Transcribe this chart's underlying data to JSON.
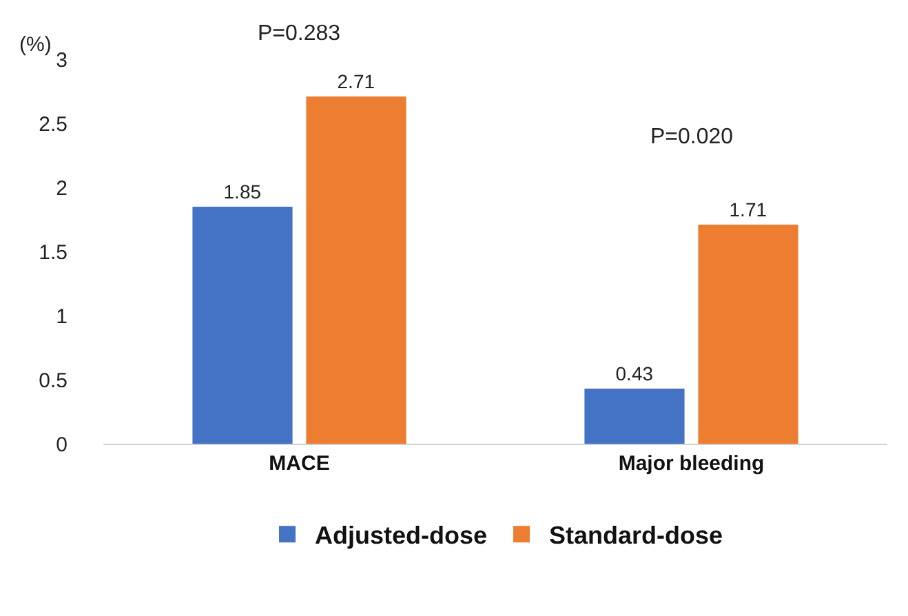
{
  "chart_data": {
    "type": "bar",
    "ylabel": "(%)",
    "categories": [
      "MACE",
      "Major bleeding"
    ],
    "series": [
      {
        "name": "Adjusted-dose",
        "color": "#4472c4",
        "values": [
          1.85,
          0.43
        ]
      },
      {
        "name": "Standard-dose",
        "color": "#ed7d31",
        "values": [
          2.71,
          1.71
        ]
      }
    ],
    "ylim": [
      0,
      3
    ],
    "yticks": [
      0,
      0.5,
      1,
      1.5,
      2,
      2.5,
      3
    ],
    "grid": false,
    "legend": "bottom",
    "data_labels": true,
    "annotations": [
      "P=0.283",
      "P=0.020"
    ]
  }
}
